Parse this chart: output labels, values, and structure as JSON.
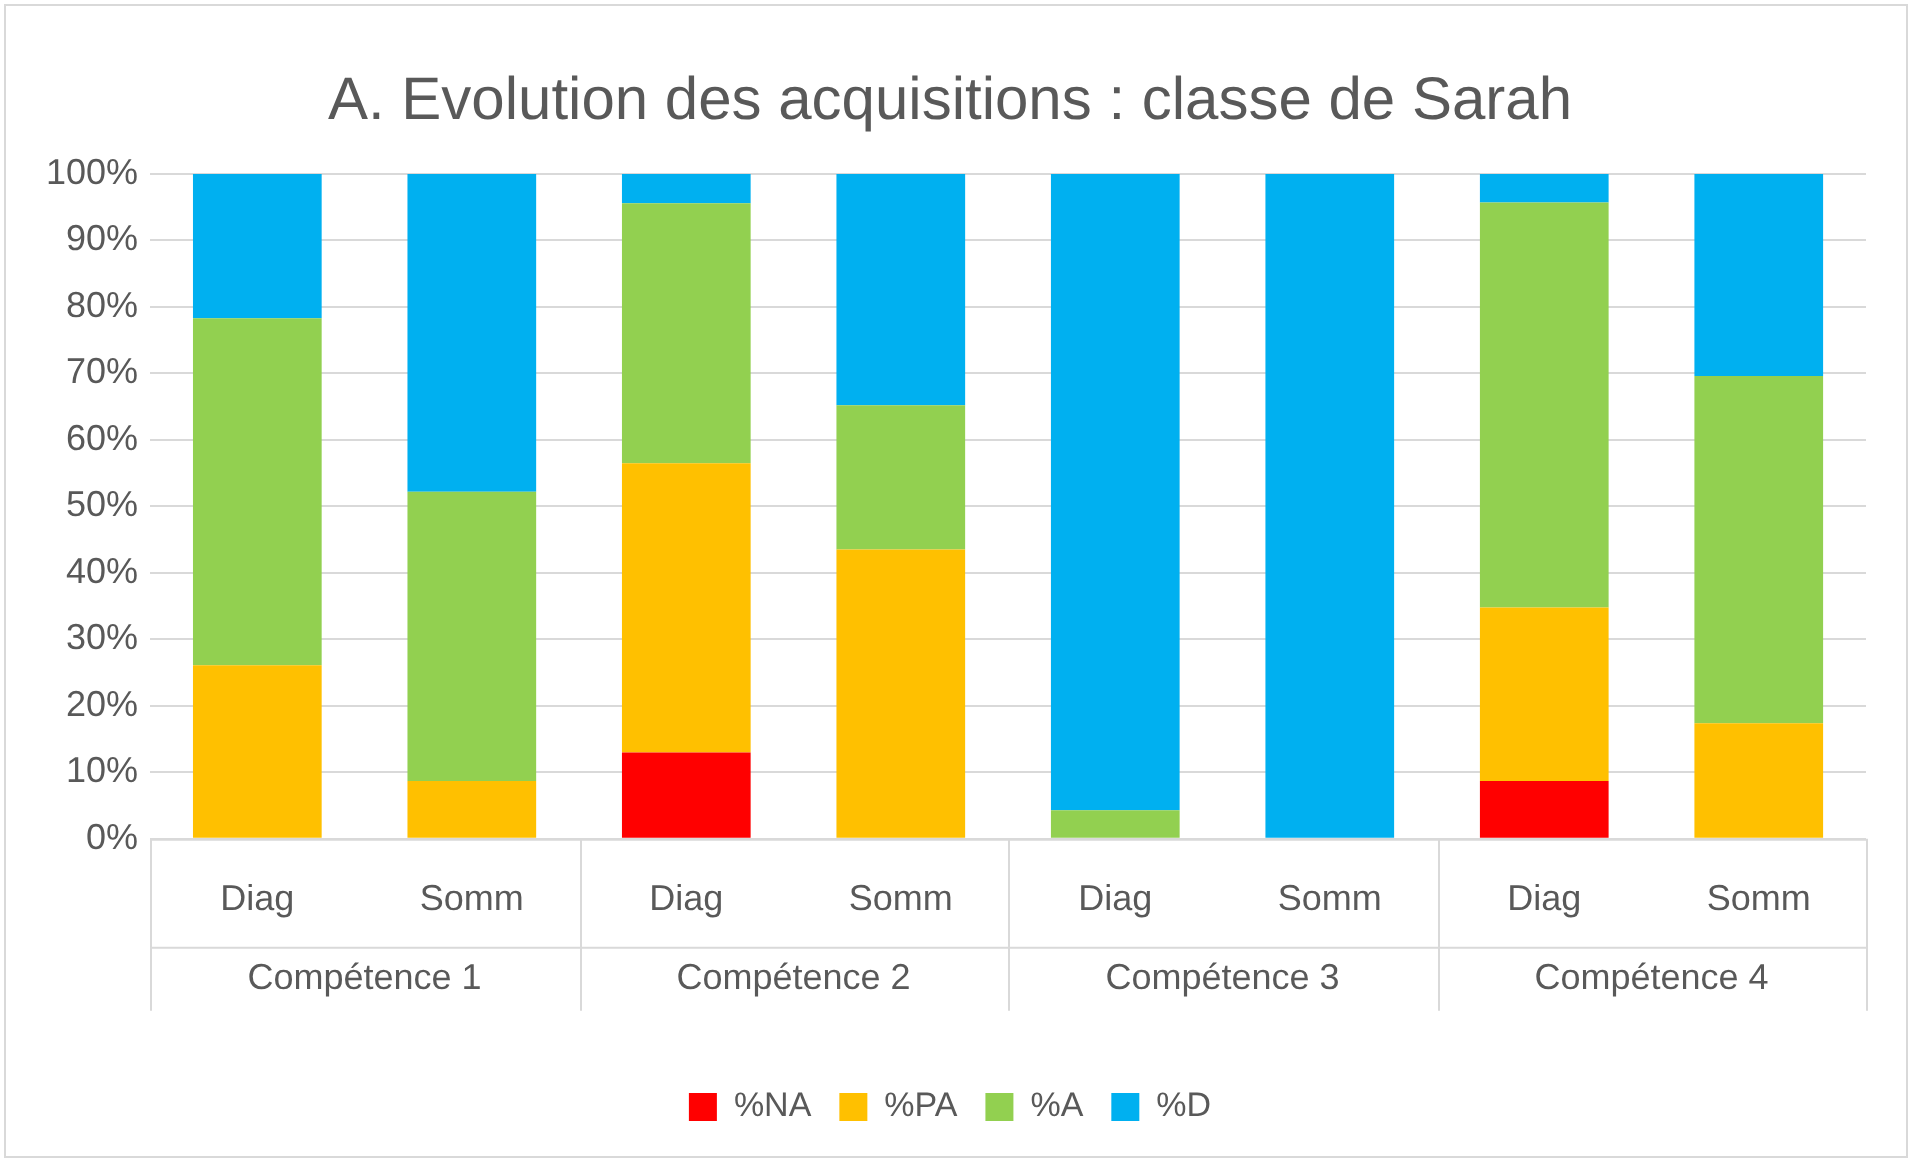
{
  "chart_data": {
    "type": "bar",
    "title": "A. Evolution des acquisitions : classe de Sarah",
    "categories": [
      "Diag",
      "Somm",
      "Diag",
      "Somm",
      "Diag",
      "Somm",
      "Diag",
      "Somm"
    ],
    "annotations": [
      "Compétence 1",
      "Compétence 2",
      "Compétence 3",
      "Compétence 4"
    ],
    "stacked": true,
    "ylim": [
      0,
      100
    ],
    "yticks": [
      {
        "value": 0,
        "label": "0%"
      },
      {
        "value": 10,
        "label": "10%"
      },
      {
        "value": 20,
        "label": "20%"
      },
      {
        "value": 30,
        "label": "30%"
      },
      {
        "value": 40,
        "label": "40%"
      },
      {
        "value": 50,
        "label": "50%"
      },
      {
        "value": 60,
        "label": "60%"
      },
      {
        "value": 70,
        "label": "70%"
      },
      {
        "value": 80,
        "label": "80%"
      },
      {
        "value": 90,
        "label": "90%"
      },
      {
        "value": 100,
        "label": "100%"
      }
    ],
    "grid": "y",
    "legend": "bottom",
    "series": [
      {
        "name": "%NA",
        "color": "#ff0000",
        "values": [
          0,
          0,
          13.0,
          0,
          0,
          0,
          8.7,
          0
        ]
      },
      {
        "name": "%PA",
        "color": "#ffc000",
        "values": [
          26.1,
          8.7,
          43.5,
          43.5,
          0,
          0,
          26.1,
          17.4
        ]
      },
      {
        "name": "%A",
        "color": "#92d050",
        "values": [
          52.2,
          43.5,
          39.1,
          21.7,
          4.3,
          0,
          60.9,
          52.2
        ]
      },
      {
        "name": "%D",
        "color": "#00b0f0",
        "values": [
          21.7,
          47.8,
          4.4,
          34.8,
          95.7,
          100,
          4.3,
          30.4
        ]
      }
    ]
  }
}
